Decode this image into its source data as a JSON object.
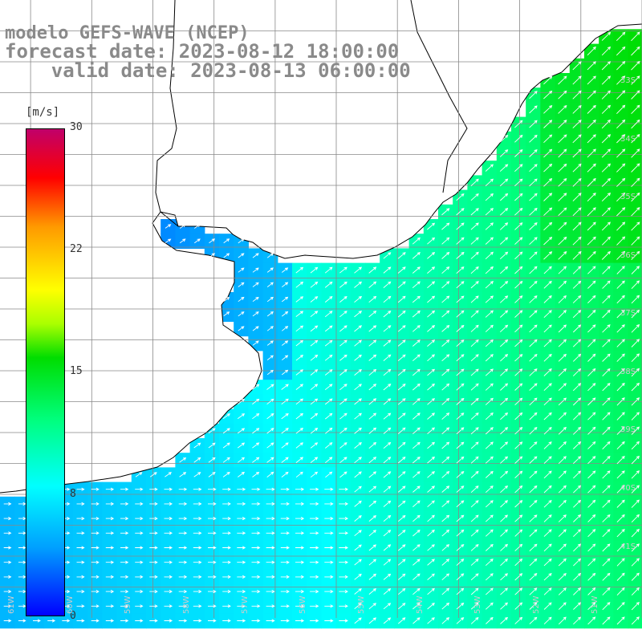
{
  "title": {
    "line1": "modelo GEFS-WAVE (NCEP)",
    "line2": "forecast date: 2023-08-12 18:00:00",
    "line3": "    valid date: 2023-08-13 06:00:00"
  },
  "colorbar": {
    "unit": "[m/s]",
    "ticks": [
      "30",
      "22",
      "15",
      "8",
      "0"
    ],
    "tick_values": [
      30,
      22,
      15,
      8,
      0
    ],
    "range": [
      0,
      30
    ],
    "colors": [
      "#0000ff",
      "#00a0ff",
      "#00ffff",
      "#00ff80",
      "#00dd00",
      "#aaff00",
      "#ffff00",
      "#ff9900",
      "#ff0000",
      "#c0006a"
    ]
  },
  "map": {
    "lat_labels": [
      "33S",
      "34S",
      "35S",
      "36S",
      "37S",
      "38S",
      "39S",
      "40S",
      "41S"
    ],
    "lon_labels": [
      "61W",
      "60W",
      "59W",
      "58W",
      "57W",
      "56W",
      "55W",
      "54W",
      "53W",
      "52W",
      "51W"
    ],
    "lat_range": [
      -41.5,
      -31.5
    ],
    "lon_range": [
      -61.5,
      -51.0
    ],
    "land_color": "#ffffff",
    "coast_color": "#000000",
    "grid_color": "#888888",
    "arrow_color": "#ffffff"
  }
}
